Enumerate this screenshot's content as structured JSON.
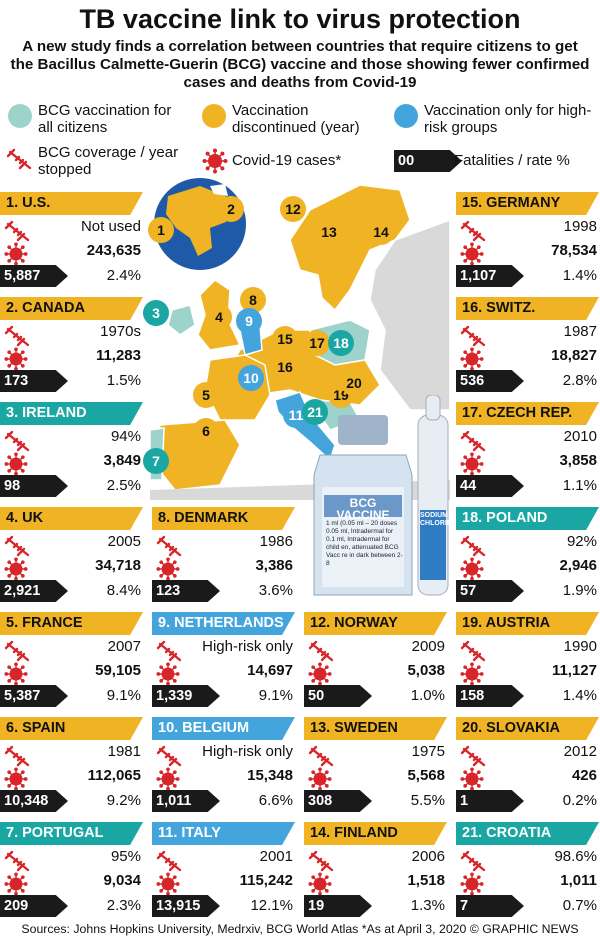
{
  "title": "TB vaccine link to virus protection",
  "subtitle": "A new study finds a correlation between countries that require citizens to get the Bacillus Calmette-Guerin (BCG) vaccine and those showing fewer confirmed cases and deaths from Covid-19",
  "colors": {
    "all": "#9ed3cb",
    "discontinued": "#f0b323",
    "high_risk": "#44a5dd",
    "cyan_head": "#1aa7a4",
    "red": "#d7262b"
  },
  "legend": {
    "all": "BCG vaccination for all citizens",
    "discontinued": "Vaccination discontinued (year)",
    "high_risk": "Vaccination only for high-risk groups",
    "coverage": "BCG coverage / year stopped",
    "cases": "Covid-19 cases*",
    "fat_box": "00",
    "fatalities": "Fatalities / rate %"
  },
  "vial": {
    "label": "BCG VACCINE",
    "small_text": "1 ml (0.05 ml – 20 doses 0.05 ml, Intradermal for 0.1 ml, Intradermal for child en, attenuated BCG Vacc re in dark between 2-8",
    "ampoule": "SODIUM CHLORIDE"
  },
  "map_numbers": [
    "1",
    "2",
    "3",
    "4",
    "5",
    "6",
    "7",
    "8",
    "9",
    "10",
    "11",
    "12",
    "13",
    "14",
    "15",
    "16",
    "17",
    "18",
    "19",
    "20",
    "21"
  ],
  "countries": [
    {
      "name": "1. U.S.",
      "cat": "discontinued",
      "year": "Not used",
      "cases": "243,635",
      "deaths": "5,887",
      "rate": "2.4%"
    },
    {
      "name": "2. CANADA",
      "cat": "discontinued",
      "year": "1970s",
      "cases": "11,283",
      "deaths": "173",
      "rate": "1.5%"
    },
    {
      "name": "3. IRELAND",
      "cat": "all",
      "year": "94%",
      "cases": "3,849",
      "deaths": "98",
      "rate": "2.5%"
    },
    {
      "name": "4. UK",
      "cat": "discontinued",
      "year": "2005",
      "cases": "34,718",
      "deaths": "2,921",
      "rate": "8.4%"
    },
    {
      "name": "5. FRANCE",
      "cat": "discontinued",
      "year": "2007",
      "cases": "59,105",
      "deaths": "5,387",
      "rate": "9.1%"
    },
    {
      "name": "6. SPAIN",
      "cat": "discontinued",
      "year": "1981",
      "cases": "112,065",
      "deaths": "10,348",
      "rate": "9.2%"
    },
    {
      "name": "7. PORTUGAL",
      "cat": "all",
      "year": "95%",
      "cases": "9,034",
      "deaths": "209",
      "rate": "2.3%"
    },
    {
      "name": "8. DENMARK",
      "cat": "discontinued",
      "year": "1986",
      "cases": "3,386",
      "deaths": "123",
      "rate": "3.6%"
    },
    {
      "name": "9. NETHERLANDS",
      "cat": "high_risk",
      "year": "High-risk only",
      "cases": "14,697",
      "deaths": "1,339",
      "rate": "9.1%"
    },
    {
      "name": "10. BELGIUM",
      "cat": "high_risk",
      "year": "High-risk only",
      "cases": "15,348",
      "deaths": "1,011",
      "rate": "6.6%"
    },
    {
      "name": "11. ITALY",
      "cat": "high_risk",
      "year": "2001",
      "cases": "115,242",
      "deaths": "13,915",
      "rate": "12.1%"
    },
    {
      "name": "12. NORWAY",
      "cat": "discontinued",
      "year": "2009",
      "cases": "5,038",
      "deaths": "50",
      "rate": "1.0%"
    },
    {
      "name": "13. SWEDEN",
      "cat": "discontinued",
      "year": "1975",
      "cases": "5,568",
      "deaths": "308",
      "rate": "5.5%"
    },
    {
      "name": "14. FINLAND",
      "cat": "discontinued",
      "year": "2006",
      "cases": "1,518",
      "deaths": "19",
      "rate": "1.3%"
    },
    {
      "name": "15. GERMANY",
      "cat": "discontinued",
      "year": "1998",
      "cases": "78,534",
      "deaths": "1,107",
      "rate": "1.4%"
    },
    {
      "name": "16. SWITZ.",
      "cat": "discontinued",
      "year": "1987",
      "cases": "18,827",
      "deaths": "536",
      "rate": "2.8%"
    },
    {
      "name": "17. CZECH REP.",
      "cat": "discontinued",
      "year": "2010",
      "cases": "3,858",
      "deaths": "44",
      "rate": "1.1%"
    },
    {
      "name": "18. POLAND",
      "cat": "all",
      "year": "92%",
      "cases": "2,946",
      "deaths": "57",
      "rate": "1.9%"
    },
    {
      "name": "19. AUSTRIA",
      "cat": "discontinued",
      "year": "1990",
      "cases": "11,127",
      "deaths": "158",
      "rate": "1.4%"
    },
    {
      "name": "20. SLOVAKIA",
      "cat": "discontinued",
      "year": "2012",
      "cases": "426",
      "deaths": "1",
      "rate": "0.2%"
    },
    {
      "name": "21. CROATIA",
      "cat": "all",
      "year": "98.6%",
      "cases": "1,011",
      "deaths": "7",
      "rate": "0.7%"
    }
  ],
  "footer": "Sources: Johns Hopkins University, Medrxiv, BCG World Atlas  *As at April 3, 2020  © GRAPHIC NEWS"
}
